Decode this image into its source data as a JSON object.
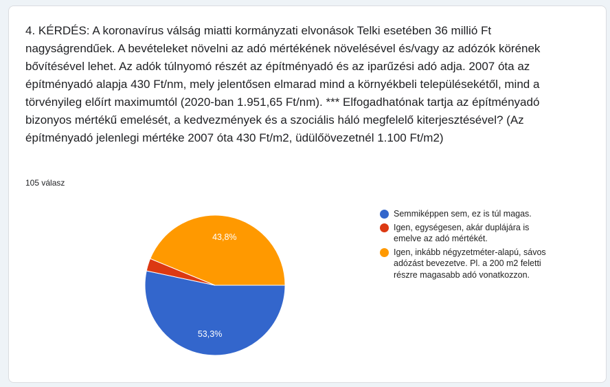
{
  "question": {
    "text": "4. KÉRDÉS: A koronavírus válság miatti kormányzati elvonások Telki esetében 36 millió Ft nagyságrendűek. A bevételeket növelni az adó mértékének növelésével és/vagy az adózók körének bővítésével lehet. Az adók túlnyomó részét az építményadó és az iparűzési adó adja. 2007 óta az építményadó alapja 430 Ft/nm, mely jelentősen elmarad mind a környékbeli településekétől, mind a törvényileg előírt maximumtól (2020-ban 1.951,65 Ft/nm). *** Elfogadhatónak tartja az építményadó bizonyos mértékű emelését, a kedvezmények és a szociális háló megfelelő kiterjesztésével? (Az építményadó jelenlegi mértéke 2007 óta 430 Ft/m2, üdülőövezetnél 1.100 Ft/m2)",
    "response_count": "105 válasz"
  },
  "chart_data": {
    "type": "pie",
    "categories": [
      "Semmiképpen sem, ez is túl magas.",
      "Igen, egységesen, akár duplájára is emelve az adó mértékét.",
      "Igen, inkább négyzetméter-alapú, sávos adózást bevezetve. Pl. a 200 m2 feletti részre magasabb adó vonatkozzon."
    ],
    "values": [
      53.3,
      2.9,
      43.8
    ],
    "labels": [
      "53,3%",
      "",
      "43,8%"
    ],
    "colors": [
      "#3366cc",
      "#dc3912",
      "#ff9900"
    ],
    "legend_position": "right"
  }
}
